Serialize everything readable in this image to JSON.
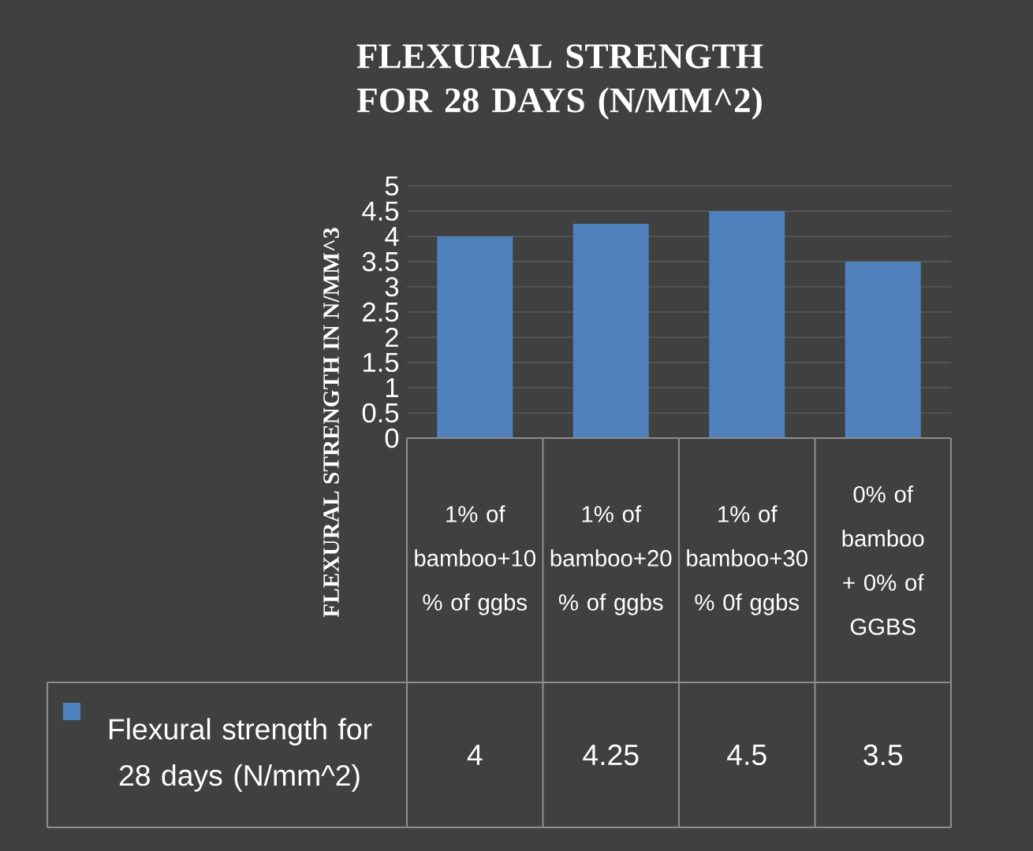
{
  "chart_data": {
    "type": "bar",
    "title": "FLEXURAL STRENGTH FOR 28 DAYS (N/MM^2)",
    "ylabel": "FLEXURAL STRENGTH IN N/MM^3",
    "categories": [
      "1% of bamboo+10 % of ggbs",
      "1% of bamboo+20 % of ggbs",
      "1% of bamboo+30 % 0f ggbs",
      "0% of bamboo + 0% of GGBS"
    ],
    "series": [
      {
        "name": "Flexural strength for 28 days (N/mm^2)",
        "color": "#4f81bd",
        "values": [
          4,
          4.25,
          4.5,
          3.5
        ],
        "value_labels": [
          "4",
          "4.25",
          "4.5",
          "3.5"
        ]
      }
    ],
    "ylim": [
      0,
      5
    ],
    "yticks": [
      0,
      0.5,
      1,
      1.5,
      2,
      2.5,
      3,
      3.5,
      4,
      4.5,
      5
    ],
    "grid": "y",
    "legend": "bottom"
  }
}
